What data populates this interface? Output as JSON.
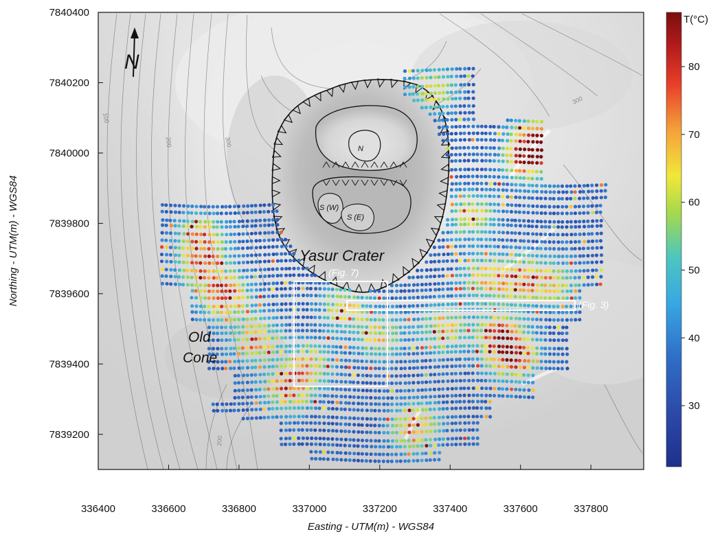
{
  "map": {
    "x_axis_title": "Easting - UTM(m) - WGS84",
    "y_axis_title": "Northing - UTM(m) - WGS84",
    "x_ticks": [
      "336400",
      "336600",
      "336800",
      "337000",
      "337200",
      "337400",
      "337600",
      "337800"
    ],
    "y_ticks": [
      "7840400",
      "7840200",
      "7840000",
      "7839800",
      "7839600",
      "7839400",
      "7839200"
    ],
    "north_label": "N",
    "labels": {
      "crater": "Yasur Crater",
      "old_cone_line1": "Old",
      "old_cone_line2": "Cone",
      "fig7": "(Fig. 7)",
      "fig3": "(Fig. 3)",
      "vent_n": "N",
      "vent_sw": "S (W)",
      "vent_se": "S (E)"
    },
    "contour_labels": [
      "100",
      "200",
      "300",
      "200",
      "300"
    ]
  },
  "colorbar": {
    "title": "T(°C)",
    "ticks": [
      "80",
      "70",
      "60",
      "50",
      "40",
      "30"
    ],
    "tick_values": [
      80,
      70,
      60,
      50,
      40,
      30
    ],
    "range": [
      21,
      88
    ],
    "colors": [
      "#1f2f8c",
      "#2f5fc0",
      "#3aa6e0",
      "#4cc6c0",
      "#a6d94c",
      "#f2e73a",
      "#f4a23a",
      "#e8402a",
      "#b01a1a",
      "#7a0f0f"
    ]
  },
  "chart_data": {
    "type": "scatter",
    "xlabel": "Easting - UTM(m) - WGS84",
    "ylabel": "Northing - UTM(m) - WGS84",
    "xlim": [
      336400,
      337950
    ],
    "ylim": [
      7839100,
      7840400
    ],
    "color_variable": "T(°C)",
    "color_range": [
      21,
      88
    ],
    "grid": false,
    "hotspots": [
      {
        "x": 336700,
        "y": 7839680,
        "t": 75
      },
      {
        "x": 336690,
        "y": 7839760,
        "t": 65
      },
      {
        "x": 336760,
        "y": 7839590,
        "t": 80
      },
      {
        "x": 336850,
        "y": 7839470,
        "t": 70
      },
      {
        "x": 336940,
        "y": 7839330,
        "t": 75
      },
      {
        "x": 337620,
        "y": 7839990,
        "t": 85
      },
      {
        "x": 337650,
        "y": 7840040,
        "t": 80
      },
      {
        "x": 337580,
        "y": 7839420,
        "t": 85
      },
      {
        "x": 337540,
        "y": 7839480,
        "t": 80
      },
      {
        "x": 337500,
        "y": 7839640,
        "t": 65
      },
      {
        "x": 337600,
        "y": 7839640,
        "t": 75
      },
      {
        "x": 337700,
        "y": 7839630,
        "t": 60
      },
      {
        "x": 337300,
        "y": 7839220,
        "t": 75
      },
      {
        "x": 337100,
        "y": 7839560,
        "t": 62
      },
      {
        "x": 337200,
        "y": 7839480,
        "t": 60
      },
      {
        "x": 337380,
        "y": 7839500,
        "t": 65
      },
      {
        "x": 337000,
        "y": 7839400,
        "t": 62
      },
      {
        "x": 337350,
        "y": 7840180,
        "t": 60
      },
      {
        "x": 337460,
        "y": 7839820,
        "t": 62
      }
    ]
  }
}
